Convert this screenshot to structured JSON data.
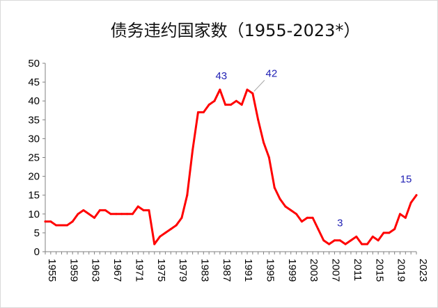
{
  "chart_data": {
    "type": "line",
    "title": "债务违约国家数（1955-2023*）",
    "xlabel": "",
    "ylabel": "",
    "xlim": [
      1955,
      2023
    ],
    "ylim": [
      0,
      50
    ],
    "y_ticks": [
      "0",
      "5",
      "10",
      "15",
      "20",
      "25",
      "30",
      "35",
      "40",
      "45",
      "50"
    ],
    "x_ticks": [
      "1955",
      "1959",
      "1963",
      "1967",
      "1971",
      "1975",
      "1979",
      "1983",
      "1987",
      "1991",
      "1995",
      "1999",
      "2003",
      "2007",
      "2011",
      "2015",
      "2019",
      "2023"
    ],
    "grid": false,
    "legend": "none",
    "series": [
      {
        "color": "#ff0000",
        "x": [
          1955,
          1956,
          1957,
          1958,
          1959,
          1960,
          1961,
          1962,
          1963,
          1964,
          1965,
          1966,
          1967,
          1968,
          1969,
          1970,
          1971,
          1972,
          1973,
          1974,
          1975,
          1976,
          1977,
          1978,
          1979,
          1980,
          1981,
          1982,
          1983,
          1984,
          1985,
          1986,
          1987,
          1988,
          1989,
          1990,
          1991,
          1992,
          1993,
          1994,
          1995,
          1996,
          1997,
          1998,
          1999,
          2000,
          2001,
          2002,
          2003,
          2004,
          2005,
          2006,
          2007,
          2008,
          2009,
          2010,
          2011,
          2012,
          2013,
          2014,
          2015,
          2016,
          2017,
          2018,
          2019,
          2020,
          2021,
          2022,
          2023
        ],
        "values": [
          8,
          8,
          7,
          7,
          7,
          8,
          10,
          11,
          10,
          9,
          11,
          11,
          10,
          10,
          10,
          10,
          10,
          12,
          11,
          11,
          2,
          4,
          5,
          6,
          7,
          9,
          15,
          27,
          37,
          37,
          39,
          40,
          43,
          39,
          39,
          40,
          39,
          43,
          42,
          35,
          29,
          25,
          17,
          14,
          12,
          11,
          10,
          8,
          9,
          9,
          6,
          3,
          2,
          3,
          3,
          2,
          3,
          4,
          2,
          2,
          4,
          3,
          5,
          5,
          6,
          10,
          9,
          13,
          15
        ]
      }
    ],
    "annotations": [
      {
        "label": "43",
        "x": 1987,
        "y": 43
      },
      {
        "label": "42",
        "x": 1993,
        "y": 42
      },
      {
        "label": "3",
        "x": 2009,
        "y": 3
      },
      {
        "label": "15",
        "x": 2023,
        "y": 15
      }
    ]
  }
}
